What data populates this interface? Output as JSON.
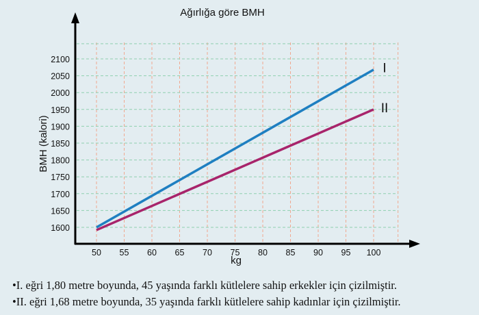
{
  "chart_data": {
    "type": "line",
    "title": "Ağırlığa göre BMH",
    "xlabel": "kg",
    "ylabel": "BMH (kalori)",
    "xlim": [
      46,
      106
    ],
    "ylim": [
      1550,
      2160
    ],
    "xticks": [
      50,
      55,
      60,
      65,
      70,
      75,
      80,
      85,
      90,
      95,
      100
    ],
    "yticks": [
      1600,
      1650,
      1700,
      1750,
      1800,
      1850,
      1900,
      1950,
      2000,
      2050,
      2100
    ],
    "grid": true,
    "series": [
      {
        "name": "I",
        "color": "#1f7fc1",
        "x": [
          50,
          100
        ],
        "y": [
          1600,
          2068
        ]
      },
      {
        "name": "II",
        "color": "#a8246b",
        "x": [
          50,
          100
        ],
        "y": [
          1592,
          1950
        ]
      }
    ]
  },
  "notes": [
    "•I. eğri 1,80 metre boyunda, 45 yaşında farklı kütlelere sahip erkekler için çizilmiştir.",
    "•II. eğri 1,68 metre boyunda, 35 yaşında farklı kütlelere sahip kadınlar için çizilmiştir."
  ]
}
